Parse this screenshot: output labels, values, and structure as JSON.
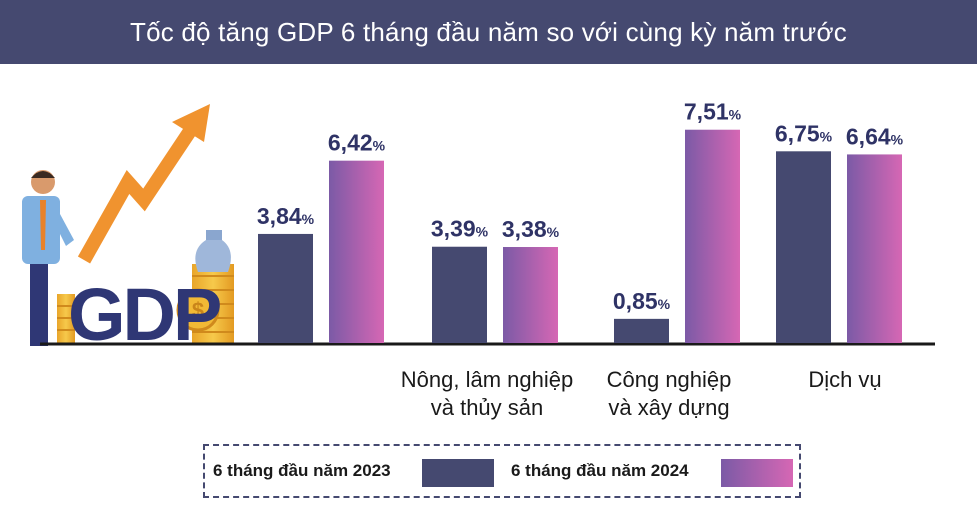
{
  "title": "Tốc độ tăng GDP 6 tháng đầu năm so với cùng kỳ năm trước",
  "colors": {
    "title_bg": "#454970",
    "series_2023": "#454970",
    "series_2024_start": "#7b5aa6",
    "series_2024_end": "#d667b4",
    "arrow": "#f0932f",
    "coin": "#f1b935",
    "gdp_text": "#2f3775"
  },
  "illustration": {
    "text": "GDP",
    "icons": [
      "businessman-icon",
      "trend-arrow-icon",
      "coin-stack-icon",
      "money-bag-icon"
    ]
  },
  "legend": {
    "items": [
      {
        "label": "6 tháng đầu năm 2023"
      },
      {
        "label": "6 tháng đầu năm 2024"
      }
    ]
  },
  "chart_data": {
    "type": "bar",
    "title": "Tốc độ tăng GDP 6 tháng đầu năm so với cùng kỳ năm trước",
    "categories": [
      "",
      "Nông, lâm nghiệp\nvà thủy sản",
      "Công nghiệp\nvà xây dựng",
      "Dịch vụ"
    ],
    "series": [
      {
        "name": "6 tháng đầu năm 2023",
        "values": [
          3.84,
          3.39,
          0.85,
          6.75
        ],
        "labels": [
          "3,84",
          "3,39",
          "0,85",
          "6,75"
        ]
      },
      {
        "name": "6 tháng đầu năm 2024",
        "values": [
          6.42,
          3.38,
          7.51,
          6.64
        ],
        "labels": [
          "6,42",
          "3,38",
          "7,51",
          "6,64"
        ]
      }
    ],
    "unit": "%",
    "ylim": [
      0,
      8
    ],
    "grid": false,
    "legend_position": "bottom"
  }
}
